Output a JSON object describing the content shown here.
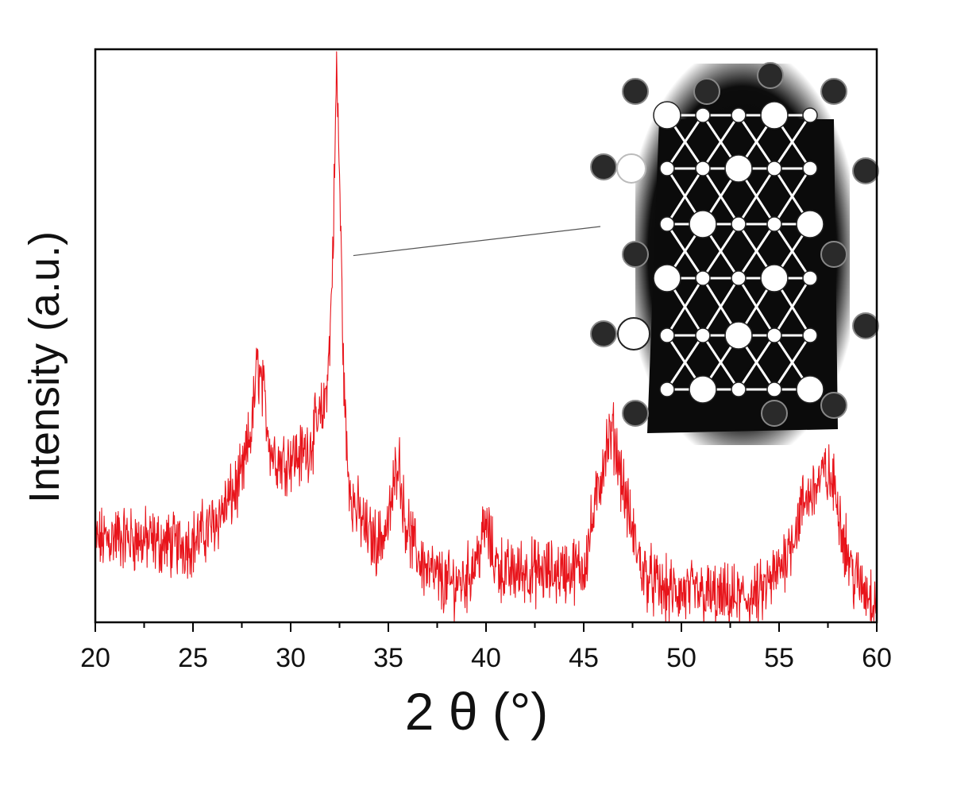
{
  "chart_data": {
    "type": "line",
    "xlabel": "2 θ (°)",
    "ylabel": "Intensity (a.u.)",
    "xlim": [
      20,
      60
    ],
    "ylim": [
      0,
      100
    ],
    "grid": false,
    "legend": "none",
    "x_ticks": [
      "20",
      "25",
      "30",
      "35",
      "40",
      "45",
      "50",
      "55",
      "60"
    ],
    "series_color": "#e8141b",
    "series": [
      {
        "x": [
          20,
          21,
          22,
          23,
          24,
          25,
          26,
          27,
          27.5,
          28,
          28.3,
          28.6,
          29,
          29.5,
          30,
          30.5,
          31,
          31.3,
          31.7,
          32,
          32.2,
          32.35,
          32.5,
          32.7,
          32.9,
          33.2,
          33.6,
          34,
          34.5,
          35,
          35.3,
          35.5,
          35.8,
          36.3,
          37,
          38,
          39,
          39.6,
          40,
          40.4,
          41,
          42,
          43,
          44,
          45,
          45.7,
          46.1,
          46.5,
          46.9,
          47.4,
          48,
          49,
          50,
          51,
          52,
          53,
          54,
          55,
          55.8,
          56.3,
          56.9,
          57.4,
          57.9,
          58.3,
          58.8,
          59.3,
          60
        ],
        "values": [
          14,
          15,
          14.5,
          14,
          13.5,
          14,
          17,
          22,
          25,
          34,
          45,
          40,
          30,
          28,
          29,
          29,
          31,
          34,
          37,
          48,
          70,
          97,
          78,
          45,
          27,
          21,
          18,
          15,
          14,
          17,
          24,
          30,
          19,
          13,
          9,
          6.5,
          7.5,
          12,
          17,
          11,
          8.5,
          9,
          8.5,
          9,
          9.5,
          22,
          30,
          33,
          26,
          17,
          9,
          5.5,
          5,
          5,
          4,
          4,
          4.5,
          9,
          16,
          21,
          24,
          26,
          23,
          15,
          8,
          6,
          4
        ]
      }
    ]
  },
  "inset": {
    "description_icon": "crystal-structure-icon",
    "pointer_target_x": 32.8,
    "pointer_target_y": 64
  }
}
